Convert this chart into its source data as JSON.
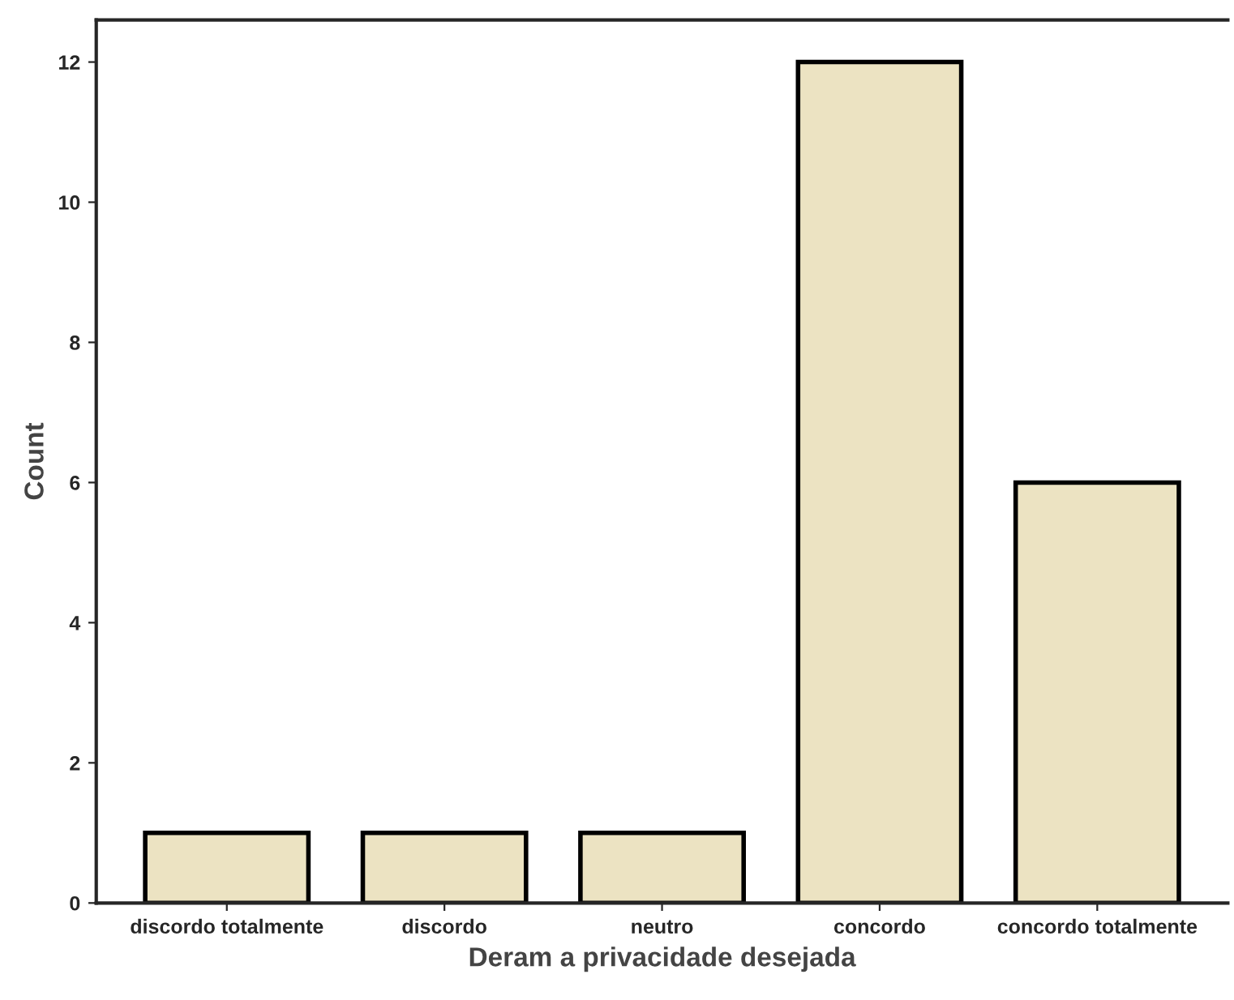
{
  "chart_data": {
    "type": "bar",
    "xlabel": "Deram a privacidade desejada",
    "ylabel": "Count",
    "categories": [
      "discordo totalmente",
      "discordo",
      "neutro",
      "concordo",
      "concordo totalmente"
    ],
    "values": [
      1,
      1,
      1,
      12,
      6
    ],
    "color": "#ece3c2",
    "ylim": [
      0,
      12.6
    ],
    "yticks": [
      0,
      2,
      4,
      6,
      8,
      10,
      12
    ],
    "grid": false,
    "legend": false
  }
}
